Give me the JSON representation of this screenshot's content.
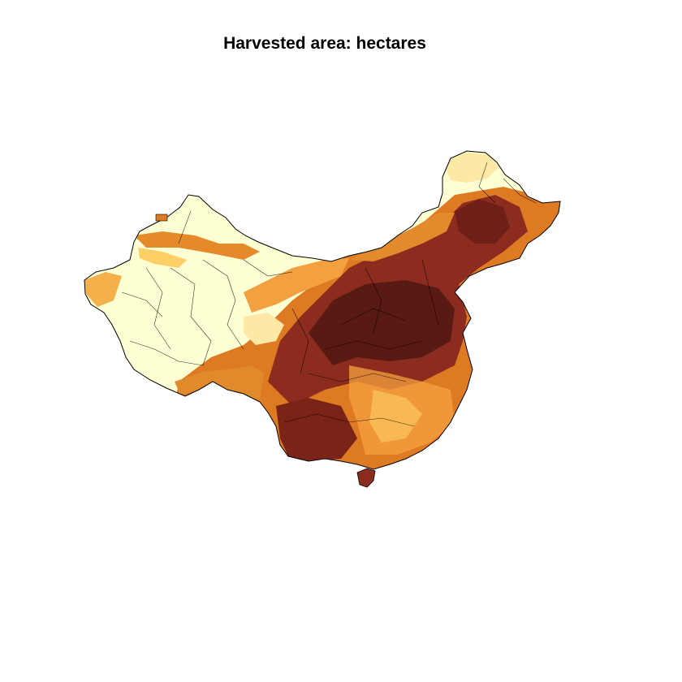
{
  "title": "Harvested area: hectares",
  "colors": {
    "none": "#FFFFD4",
    "very_low": "#FEE8A6",
    "low": "#FECF66",
    "medium_low": "#F6A141",
    "medium": "#DE7A22",
    "medium_high": "#B4461A",
    "high": "#8C2C1E",
    "very_high": "#5A1A14",
    "border": "#000000",
    "background": "#FFFFFF"
  }
}
